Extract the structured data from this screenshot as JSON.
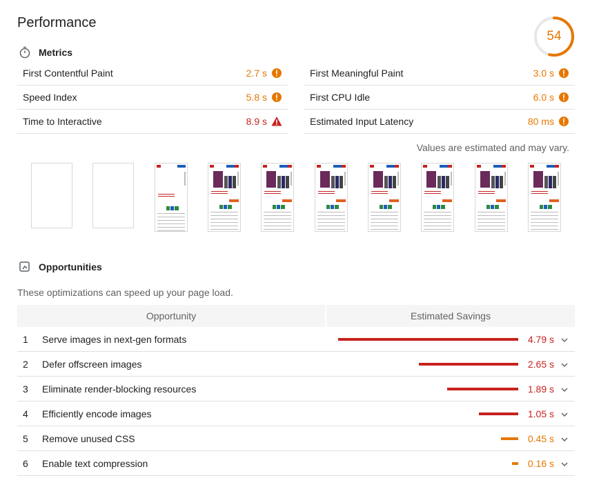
{
  "title": "Performance",
  "score": {
    "value": "54",
    "fraction": 0.54,
    "color": "#e67700"
  },
  "metrics_section": {
    "label": "Metrics"
  },
  "metrics": {
    "left": [
      {
        "name": "First Contentful Paint",
        "value": "2.7 s",
        "status": "average"
      },
      {
        "name": "Speed Index",
        "value": "5.8 s",
        "status": "average"
      },
      {
        "name": "Time to Interactive",
        "value": "8.9 s",
        "status": "fail"
      }
    ],
    "right": [
      {
        "name": "First Meaningful Paint",
        "value": "3.0 s",
        "status": "average"
      },
      {
        "name": "First CPU Idle",
        "value": "6.0 s",
        "status": "average"
      },
      {
        "name": "Estimated Input Latency",
        "value": "80 ms",
        "status": "average"
      }
    ]
  },
  "estimate_note": "Values are estimated and may vary.",
  "opportunities_section": {
    "label": "Opportunities",
    "subtitle": "These optimizations can speed up your page load.",
    "col_opportunity": "Opportunity",
    "col_savings": "Estimated Savings"
  },
  "opportunities": [
    {
      "index": "1",
      "name": "Serve images in next-gen formats",
      "savings": "4.79 s",
      "seconds": 4.79,
      "status": "fail"
    },
    {
      "index": "2",
      "name": "Defer offscreen images",
      "savings": "2.65 s",
      "seconds": 2.65,
      "status": "fail"
    },
    {
      "index": "3",
      "name": "Eliminate render-blocking resources",
      "savings": "1.89 s",
      "seconds": 1.89,
      "status": "fail"
    },
    {
      "index": "4",
      "name": "Efficiently encode images",
      "savings": "1.05 s",
      "seconds": 1.05,
      "status": "fail"
    },
    {
      "index": "5",
      "name": "Remove unused CSS",
      "savings": "0.45 s",
      "seconds": 0.45,
      "status": "average"
    },
    {
      "index": "6",
      "name": "Enable text compression",
      "savings": "0.16 s",
      "seconds": 0.16,
      "status": "average"
    }
  ],
  "colors": {
    "fail": "#c7221f",
    "average": "#e67700"
  }
}
